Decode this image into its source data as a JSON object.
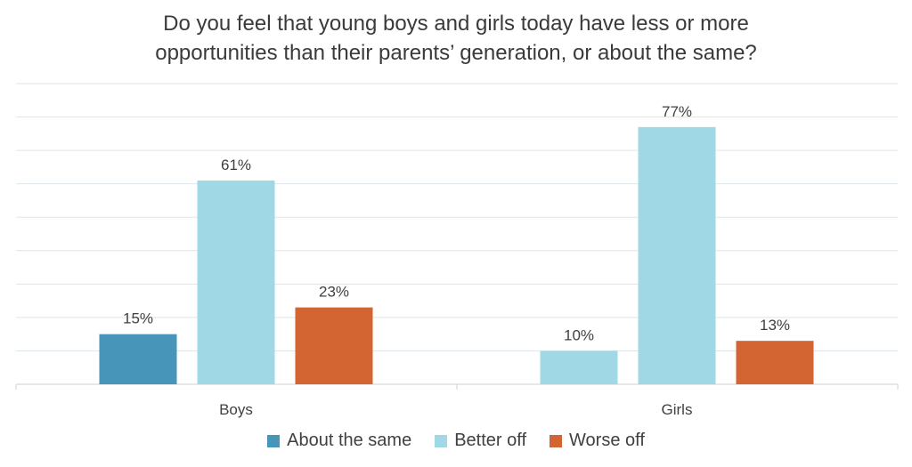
{
  "chart_data": {
    "type": "bar",
    "title_lines": [
      "Do you feel that young boys and girls today have less or more",
      "opportunities than their parents’ generation, or about the same?"
    ],
    "categories": [
      "Boys",
      "Girls"
    ],
    "series": [
      {
        "name": "About the same",
        "color": "#4796ba",
        "values": [
          15,
          null
        ],
        "labels": [
          "15%",
          ""
        ]
      },
      {
        "name": "Better off",
        "color": "#a1d8e5",
        "values": [
          61,
          77
        ],
        "labels": [
          "61%",
          "77%"
        ]
      },
      {
        "name": "Worse off",
        "color": "#d36532",
        "values": [
          23,
          13
        ],
        "labels": [
          "23%",
          "13%"
        ]
      }
    ],
    "girls_extra": {
      "series_override": [
        {
          "name": "About the same",
          "color": "#a1d8e5",
          "value": 10,
          "label": "10%"
        }
      ]
    },
    "ylim": [
      0,
      90
    ],
    "grid": true,
    "legend_position": "bottom"
  }
}
